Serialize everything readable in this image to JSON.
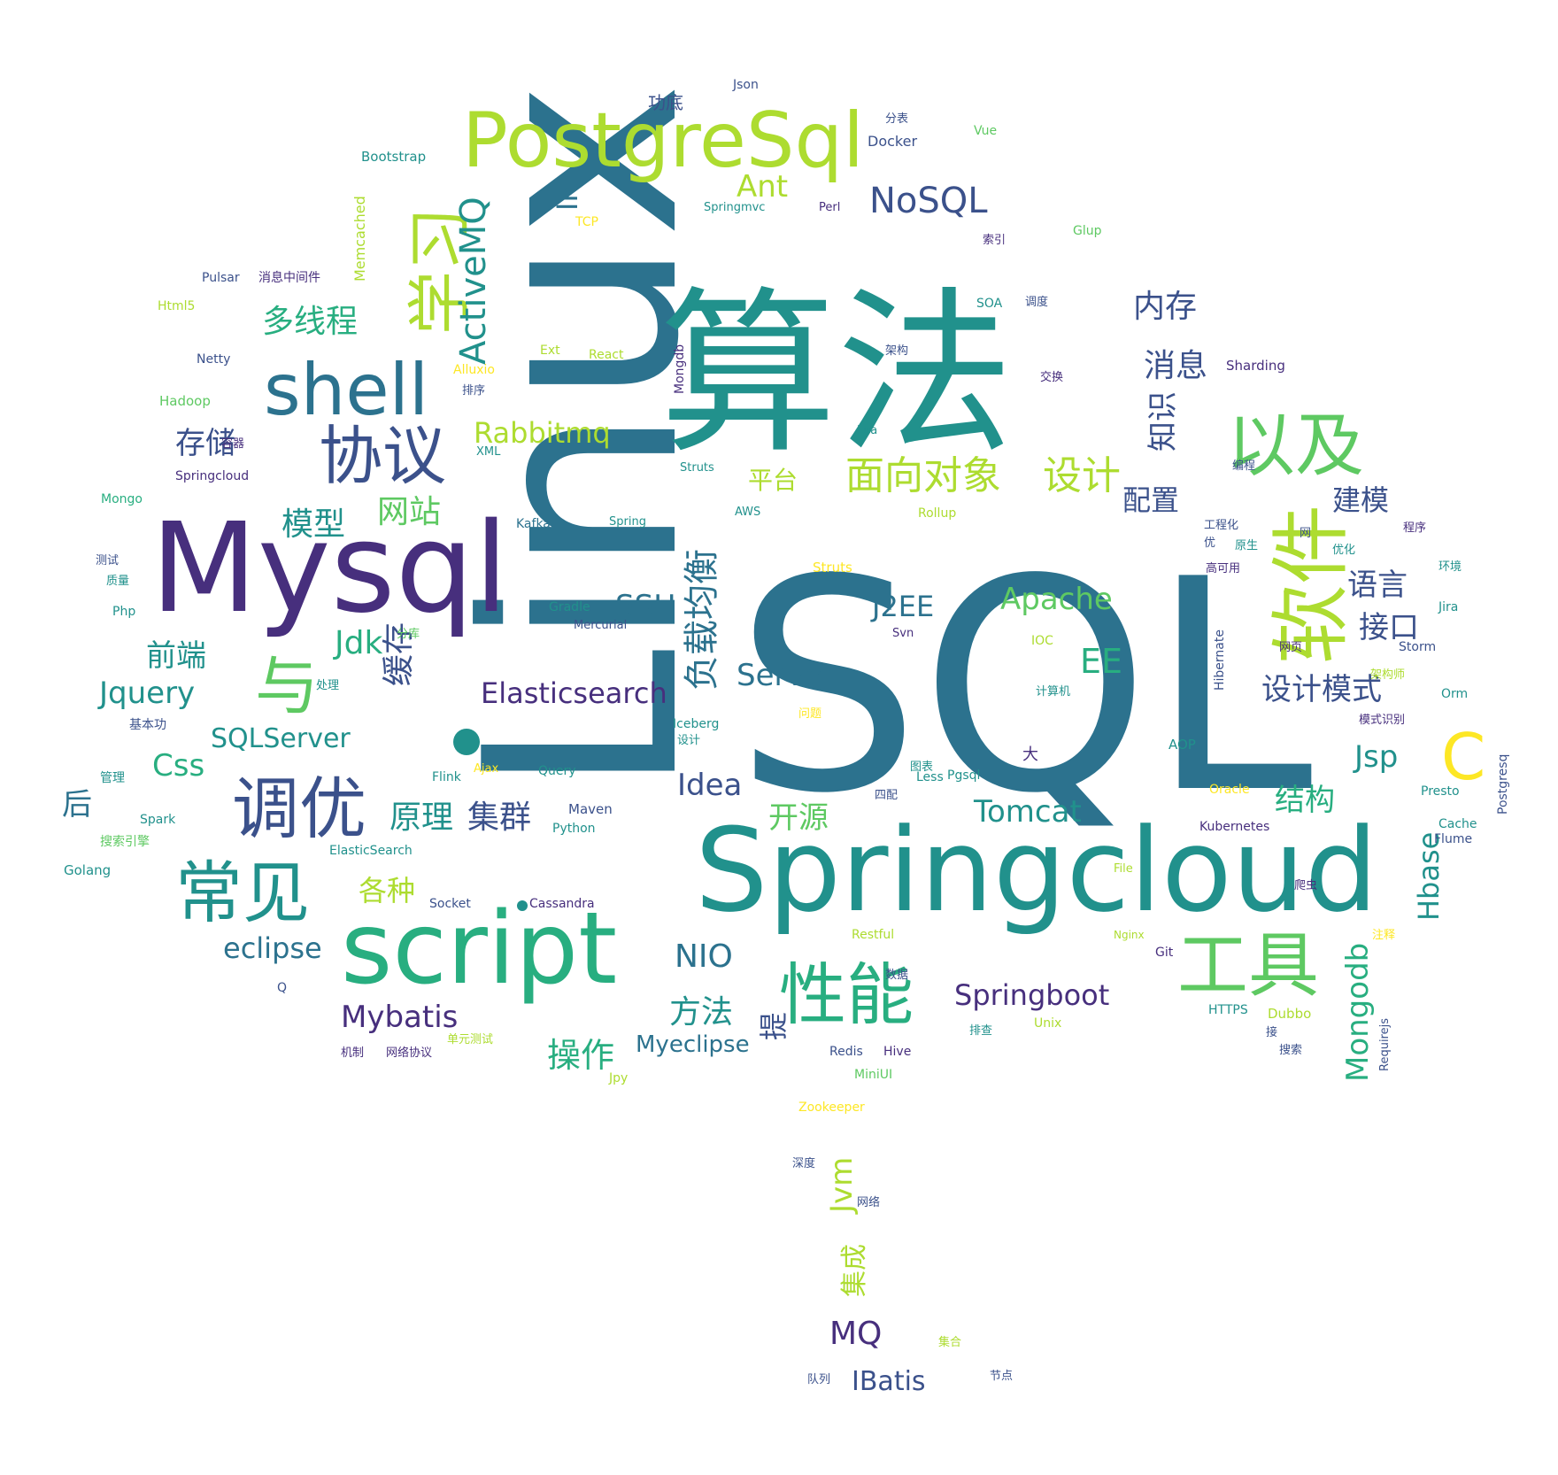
{
  "palette": {
    "purple": "#472f7d",
    "indigo": "#3b518b",
    "blue": "#2c728e",
    "teal": "#21918c",
    "green": "#28ae80",
    "lightgreen": "#5ec962",
    "lime": "#addc30",
    "yellow": "#fde725"
  },
  "words": [
    {
      "text": "Linux",
      "color": "blue"
    },
    {
      "text": "SQL",
      "color": "blue"
    },
    {
      "text": "算法",
      "color": "teal"
    },
    {
      "text": "Mysql",
      "color": "purple"
    },
    {
      "text": "Springcloud",
      "color": "teal"
    },
    {
      "text": "PostgreSql",
      "color": "lime"
    },
    {
      "text": "script",
      "color": "green"
    },
    {
      "text": "软件",
      "color": "lime"
    },
    {
      "text": "学习",
      "color": "lime"
    },
    {
      "text": "shell",
      "color": "blue"
    },
    {
      "text": "以及",
      "color": "lightgreen"
    },
    {
      "text": "工具",
      "color": "lightgreen"
    },
    {
      "text": "协议",
      "color": "indigo"
    },
    {
      "text": "调优",
      "color": "indigo"
    },
    {
      "text": "常见",
      "color": "teal"
    },
    {
      "text": "性能",
      "color": "green"
    },
    {
      "text": "与",
      "color": "lightgreen"
    },
    {
      "text": "C",
      "color": "yellow"
    },
    {
      "text": "NoSQL",
      "color": "indigo"
    },
    {
      "text": "ActiveMQ",
      "color": "teal"
    },
    {
      "text": "面向对象",
      "color": "lime"
    },
    {
      "text": "设计",
      "color": "lime"
    },
    {
      "text": "负载均衡",
      "color": "blue"
    },
    {
      "text": "内存",
      "color": "indigo"
    },
    {
      "text": "消息",
      "color": "indigo"
    },
    {
      "text": "知识",
      "color": "indigo"
    },
    {
      "text": "多线程",
      "color": "green"
    },
    {
      "text": "Rabbitmq",
      "color": "lime"
    },
    {
      "text": "存储",
      "color": "indigo"
    },
    {
      "text": "平台",
      "color": "lime"
    },
    {
      "text": "配置",
      "color": "indigo"
    },
    {
      "text": "建模",
      "color": "indigo"
    },
    {
      "text": "模型",
      "color": "teal"
    },
    {
      "text": "网站",
      "color": "lightgreen"
    },
    {
      "text": "Ant",
      "color": "lime"
    },
    {
      "text": "IP",
      "color": "blue"
    },
    {
      "text": "SSH",
      "color": "blue"
    },
    {
      "text": "J2EE",
      "color": "blue"
    },
    {
      "text": "Apache",
      "color": "lightgreen"
    },
    {
      "text": "语言",
      "color": "indigo"
    },
    {
      "text": "接口",
      "color": "indigo"
    },
    {
      "text": "Jdk",
      "color": "green"
    },
    {
      "text": "前端",
      "color": "teal"
    },
    {
      "text": "EE",
      "color": "green"
    },
    {
      "text": "Server",
      "color": "blue"
    },
    {
      "text": "设计模式",
      "color": "indigo"
    },
    {
      "text": "Jquery",
      "color": "teal"
    },
    {
      "text": "Elasticsearch",
      "color": "purple"
    },
    {
      "text": "缓存",
      "color": "indigo"
    },
    {
      "text": "SQLServer",
      "color": "teal"
    },
    {
      "text": "Css",
      "color": "green"
    },
    {
      "text": "Jsp",
      "color": "teal"
    },
    {
      "text": "Idea",
      "color": "indigo"
    },
    {
      "text": "后",
      "color": "blue"
    },
    {
      "text": "原理",
      "color": "teal"
    },
    {
      "text": "集群",
      "color": "indigo"
    },
    {
      "text": "开源",
      "color": "lightgreen"
    },
    {
      "text": "Tomcat",
      "color": "teal"
    },
    {
      "text": "结构",
      "color": "green"
    },
    {
      "text": "各种",
      "color": "lime"
    },
    {
      "text": "Hbase",
      "color": "teal"
    },
    {
      "text": "Mongodb",
      "color": "green"
    },
    {
      "text": "eclipse",
      "color": "blue"
    },
    {
      "text": "NIO",
      "color": "blue"
    },
    {
      "text": "Springboot",
      "color": "purple"
    },
    {
      "text": "方法",
      "color": "teal"
    },
    {
      "text": "Mybatis",
      "color": "purple"
    },
    {
      "text": "操作",
      "color": "green"
    },
    {
      "text": "Myeclipse",
      "color": "blue"
    },
    {
      "text": "提",
      "color": "indigo"
    },
    {
      "text": "Jvm",
      "color": "lime"
    },
    {
      "text": "集成",
      "color": "lime"
    },
    {
      "text": "MQ",
      "color": "purple"
    },
    {
      "text": "IBatis",
      "color": "indigo"
    },
    {
      "text": "Bootstrap",
      "color": "teal"
    },
    {
      "text": "Memcached",
      "color": "lime"
    },
    {
      "text": "Pulsar",
      "color": "indigo"
    },
    {
      "text": "消息中间件",
      "color": "purple"
    },
    {
      "text": "Html5",
      "color": "lime"
    },
    {
      "text": "Netty",
      "color": "indigo"
    },
    {
      "text": "Hadoop",
      "color": "lightgreen"
    },
    {
      "text": "Springcloud",
      "color": "purple"
    },
    {
      "text": "Mongo",
      "color": "green"
    },
    {
      "text": "Php",
      "color": "teal"
    },
    {
      "text": "基本功",
      "color": "indigo"
    },
    {
      "text": "管理",
      "color": "teal"
    },
    {
      "text": "Spark",
      "color": "teal"
    },
    {
      "text": "搜索引擎",
      "color": "lightgreen"
    },
    {
      "text": "Golang",
      "color": "teal"
    },
    {
      "text": "ElasticSearch",
      "color": "teal"
    },
    {
      "text": "Json",
      "color": "indigo"
    },
    {
      "text": "功底",
      "color": "indigo"
    },
    {
      "text": "Docker",
      "color": "indigo"
    },
    {
      "text": "分表",
      "color": "indigo"
    },
    {
      "text": "Vue",
      "color": "lightgreen"
    },
    {
      "text": "TCP",
      "color": "yellow"
    },
    {
      "text": "Springmvc",
      "color": "teal"
    },
    {
      "text": "Perl",
      "color": "purple"
    },
    {
      "text": "Glup",
      "color": "lightgreen"
    },
    {
      "text": "SOA",
      "color": "teal"
    },
    {
      "text": "Ext",
      "color": "lime"
    },
    {
      "text": "React",
      "color": "lime"
    },
    {
      "text": "Mongdb",
      "color": "purple"
    },
    {
      "text": "Sharding",
      "color": "purple"
    },
    {
      "text": "Alluxio",
      "color": "yellow"
    },
    {
      "text": "XML",
      "color": "teal"
    },
    {
      "text": "Lua",
      "color": "teal"
    },
    {
      "text": "Struts",
      "color": "teal"
    },
    {
      "text": "Kafka",
      "color": "blue"
    },
    {
      "text": "Spring",
      "color": "teal"
    },
    {
      "text": "AWS",
      "color": "teal"
    },
    {
      "text": "Rollup",
      "color": "lime"
    },
    {
      "text": "Struts",
      "color": "yellow"
    },
    {
      "text": "Gradle",
      "color": "teal"
    },
    {
      "text": "Mercurial",
      "color": "indigo"
    },
    {
      "text": "Svn",
      "color": "purple"
    },
    {
      "text": "IOC",
      "color": "lime"
    },
    {
      "text": "Hibernate",
      "color": "indigo"
    },
    {
      "text": "Storm",
      "color": "indigo"
    },
    {
      "text": "Jira",
      "color": "teal"
    },
    {
      "text": "Orm",
      "color": "teal"
    },
    {
      "text": "Iceberg",
      "color": "teal"
    },
    {
      "text": "AOP",
      "color": "teal"
    },
    {
      "text": "Ajax",
      "color": "yellow"
    },
    {
      "text": "Query",
      "color": "teal"
    },
    {
      "text": "Flink",
      "color": "teal"
    },
    {
      "text": "Less",
      "color": "teal"
    },
    {
      "text": "Pgsql",
      "color": "teal"
    },
    {
      "text": "Oracle",
      "color": "yellow"
    },
    {
      "text": "Presto",
      "color": "teal"
    },
    {
      "text": "Postgresq",
      "color": "indigo"
    },
    {
      "text": "Maven",
      "color": "indigo"
    },
    {
      "text": "Python",
      "color": "teal"
    },
    {
      "text": "Kubernetes",
      "color": "purple"
    },
    {
      "text": "Cache",
      "color": "teal"
    },
    {
      "text": "Flume",
      "color": "indigo"
    },
    {
      "text": "Socket",
      "color": "indigo"
    },
    {
      "text": "Cassandra",
      "color": "purple"
    },
    {
      "text": "Restful",
      "color": "lime"
    },
    {
      "text": "Nginx",
      "color": "lime"
    },
    {
      "text": "Git",
      "color": "purple"
    },
    {
      "text": "File",
      "color": "lime"
    },
    {
      "text": "HTTPS",
      "color": "teal"
    },
    {
      "text": "Dubbo",
      "color": "lime"
    },
    {
      "text": "Unix",
      "color": "lime"
    },
    {
      "text": "Redis",
      "color": "indigo"
    },
    {
      "text": "Hive",
      "color": "purple"
    },
    {
      "text": "Requirejs",
      "color": "indigo"
    },
    {
      "text": "MiniUI",
      "color": "lightgreen"
    },
    {
      "text": "Jpy",
      "color": "lime"
    },
    {
      "text": "Zookeeper",
      "color": "yellow"
    },
    {
      "text": "Q",
      "color": "indigo"
    },
    {
      "text": "大",
      "color": "purple"
    },
    {
      "text": "四配",
      "color": "indigo"
    },
    {
      "text": "机制",
      "color": "purple"
    },
    {
      "text": "网络协议",
      "color": "purple"
    },
    {
      "text": "单元测试",
      "color": "lime"
    },
    {
      "text": "深度",
      "color": "indigo"
    },
    {
      "text": "网络",
      "color": "indigo"
    },
    {
      "text": "队列",
      "color": "indigo"
    },
    {
      "text": "节点",
      "color": "indigo"
    },
    {
      "text": "注释",
      "color": "yellow"
    },
    {
      "text": "搜索",
      "color": "indigo"
    },
    {
      "text": "排查",
      "color": "teal"
    },
    {
      "text": "测试",
      "color": "indigo"
    },
    {
      "text": "工程化",
      "color": "indigo"
    },
    {
      "text": "程序",
      "color": "purple"
    },
    {
      "text": "模式识别",
      "color": "purple"
    },
    {
      "text": "计算机",
      "color": "teal"
    },
    {
      "text": "问题",
      "color": "yellow"
    },
    {
      "text": "图表",
      "color": "teal"
    },
    {
      "text": "设计",
      "color": "teal"
    },
    {
      "text": "索引",
      "color": "purple"
    },
    {
      "text": "调度",
      "color": "indigo"
    },
    {
      "text": "架构",
      "color": "indigo"
    },
    {
      "text": "交换",
      "color": "purple"
    },
    {
      "text": "排序",
      "color": "indigo"
    },
    {
      "text": "质量",
      "color": "teal"
    },
    {
      "text": "容器",
      "color": "purple"
    },
    {
      "text": "分库",
      "color": "lightgreen"
    },
    {
      "text": "处理",
      "color": "teal"
    },
    {
      "text": "环境",
      "color": "teal"
    },
    {
      "text": "优化",
      "color": "teal"
    },
    {
      "text": "数据",
      "color": "indigo"
    },
    {
      "text": "网页",
      "color": "purple"
    },
    {
      "text": "爬虫",
      "color": "purple"
    },
    {
      "text": "架构师",
      "color": "lime"
    },
    {
      "text": "网",
      "color": "indigo"
    },
    {
      "text": "集合",
      "color": "lime"
    },
    {
      "text": "接",
      "color": "indigo"
    },
    {
      "text": "编程",
      "color": "indigo"
    },
    {
      "text": "优",
      "color": "indigo"
    },
    {
      "text": "高可用",
      "color": "purple"
    },
    {
      "text": "原生",
      "color": "teal"
    }
  ]
}
